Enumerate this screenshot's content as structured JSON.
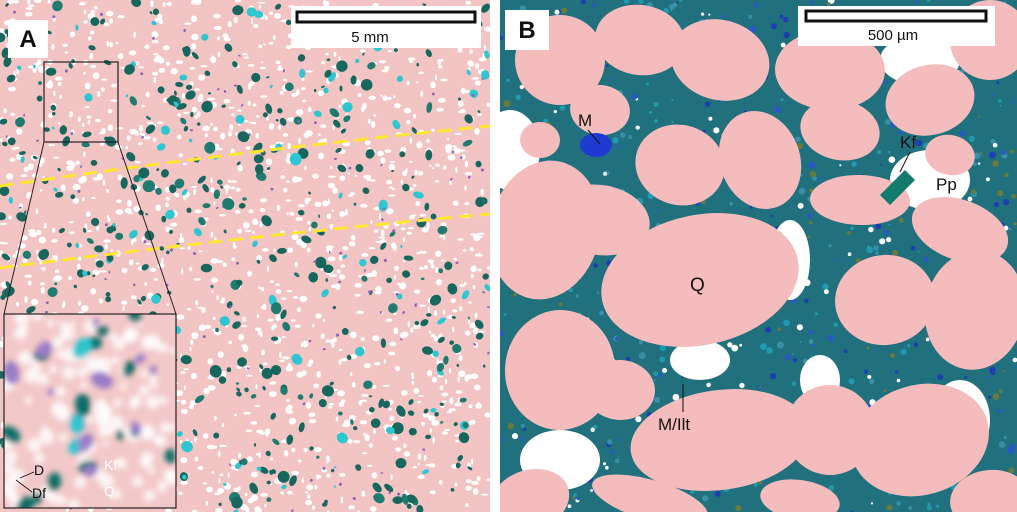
{
  "panels": [
    {
      "label": "A",
      "scale": "5 mm",
      "inset_labels": [
        "D",
        "Df",
        "Kf",
        "Q"
      ]
    },
    {
      "label": "B",
      "scale": "500 µm",
      "labels": [
        "M",
        "Kf",
        "Pp",
        "Q",
        "M/Ilt"
      ]
    }
  ]
}
